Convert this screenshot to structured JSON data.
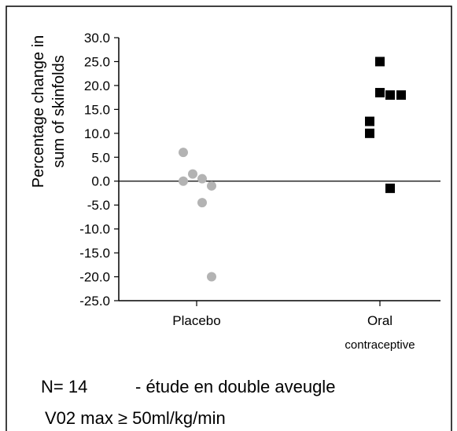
{
  "chart_data": {
    "type": "strip",
    "y_label": [
      "Percentage change in",
      "sum of skinfolds"
    ],
    "categories": [
      "Placebo",
      "Oral contraceptive"
    ],
    "series": [
      {
        "color": "#b3b3b3",
        "marker": "circle",
        "values": [
          6,
          0,
          1.5,
          0.5,
          -1,
          -4.5,
          -20
        ]
      },
      {
        "color": "#000000",
        "marker": "square",
        "values": [
          25,
          18.5,
          18,
          18,
          12.5,
          10,
          -1.5
        ]
      }
    ],
    "ylim": [
      -25,
      30
    ],
    "yticks": [
      {
        "value": 30,
        "label": "30.0"
      },
      {
        "value": 25,
        "label": "25.0"
      },
      {
        "value": 20,
        "label": "20.0"
      },
      {
        "value": 15,
        "label": "15.0"
      },
      {
        "value": 10,
        "label": "10.0"
      },
      {
        "value": 5,
        "label": "5.0"
      },
      {
        "value": 0,
        "label": "0.0"
      },
      {
        "value": -5,
        "label": "-5.0"
      },
      {
        "value": -10,
        "label": "-10.0"
      },
      {
        "value": -15,
        "label": "-15.0"
      },
      {
        "value": -20,
        "label": "-20.0"
      },
      {
        "value": -25,
        "label": "-25.0"
      }
    ],
    "zero_line": true,
    "annotations": [
      "N= 14",
      "- étude en double aveugle",
      "V02 max ≥ 50ml/kg/min"
    ]
  }
}
